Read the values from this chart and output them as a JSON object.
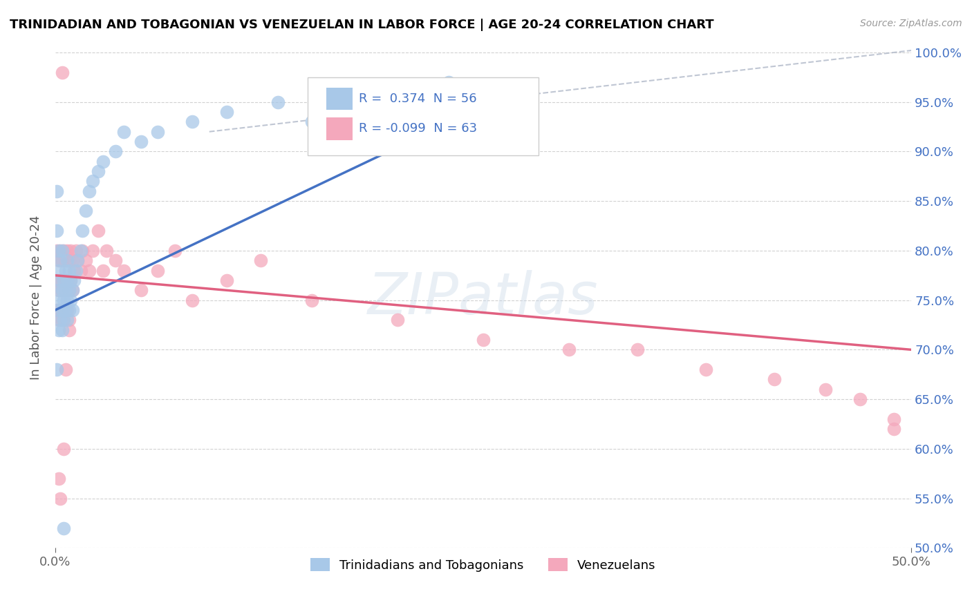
{
  "title": "TRINIDADIAN AND TOBAGONIAN VS VENEZUELAN IN LABOR FORCE | AGE 20-24 CORRELATION CHART",
  "source": "Source: ZipAtlas.com",
  "ylabel": "In Labor Force | Age 20-24",
  "xlim": [
    0.0,
    0.5
  ],
  "ylim": [
    0.5,
    1.005
  ],
  "R_blue": 0.374,
  "N_blue": 56,
  "R_pink": -0.099,
  "N_pink": 63,
  "blue_color": "#a8c8e8",
  "pink_color": "#f4a8bc",
  "blue_line_color": "#4472c4",
  "pink_line_color": "#e06080",
  "gray_dash_color": "#b0b8c8",
  "legend_label_blue": "Trinidadians and Tobagonians",
  "legend_label_pink": "Venezuelans",
  "blue_scatter_x": [
    0.001,
    0.001,
    0.002,
    0.002,
    0.002,
    0.002,
    0.002,
    0.003,
    0.003,
    0.003,
    0.003,
    0.004,
    0.004,
    0.004,
    0.004,
    0.005,
    0.005,
    0.005,
    0.006,
    0.006,
    0.006,
    0.007,
    0.007,
    0.007,
    0.007,
    0.008,
    0.008,
    0.008,
    0.009,
    0.009,
    0.01,
    0.01,
    0.011,
    0.012,
    0.013,
    0.015,
    0.016,
    0.018,
    0.02,
    0.022,
    0.025,
    0.028,
    0.035,
    0.04,
    0.05,
    0.06,
    0.08,
    0.1,
    0.13,
    0.15,
    0.17,
    0.2,
    0.23,
    0.27,
    0.005,
    0.001
  ],
  "blue_scatter_y": [
    0.86,
    0.82,
    0.8,
    0.76,
    0.74,
    0.72,
    0.78,
    0.77,
    0.75,
    0.73,
    0.79,
    0.76,
    0.74,
    0.72,
    0.8,
    0.75,
    0.73,
    0.77,
    0.76,
    0.74,
    0.78,
    0.75,
    0.73,
    0.77,
    0.79,
    0.76,
    0.74,
    0.78,
    0.75,
    0.77,
    0.76,
    0.74,
    0.77,
    0.78,
    0.79,
    0.8,
    0.82,
    0.84,
    0.86,
    0.87,
    0.88,
    0.89,
    0.9,
    0.92,
    0.91,
    0.92,
    0.93,
    0.94,
    0.95,
    0.93,
    0.96,
    0.95,
    0.97,
    0.96,
    0.52,
    0.68
  ],
  "pink_scatter_x": [
    0.001,
    0.001,
    0.001,
    0.002,
    0.002,
    0.002,
    0.003,
    0.003,
    0.003,
    0.004,
    0.004,
    0.004,
    0.005,
    0.005,
    0.005,
    0.006,
    0.006,
    0.007,
    0.007,
    0.007,
    0.008,
    0.008,
    0.008,
    0.009,
    0.009,
    0.01,
    0.01,
    0.011,
    0.012,
    0.013,
    0.015,
    0.016,
    0.018,
    0.02,
    0.022,
    0.025,
    0.028,
    0.03,
    0.035,
    0.04,
    0.05,
    0.06,
    0.07,
    0.08,
    0.1,
    0.12,
    0.15,
    0.2,
    0.25,
    0.3,
    0.34,
    0.38,
    0.42,
    0.45,
    0.47,
    0.49,
    0.49,
    0.005,
    0.002,
    0.003,
    0.004,
    0.006,
    0.008
  ],
  "pink_scatter_y": [
    0.8,
    0.77,
    0.74,
    0.79,
    0.76,
    0.73,
    0.8,
    0.77,
    0.74,
    0.79,
    0.76,
    0.73,
    0.8,
    0.77,
    0.74,
    0.79,
    0.76,
    0.8,
    0.77,
    0.74,
    0.79,
    0.76,
    0.73,
    0.8,
    0.77,
    0.79,
    0.76,
    0.78,
    0.8,
    0.79,
    0.78,
    0.8,
    0.79,
    0.78,
    0.8,
    0.82,
    0.78,
    0.8,
    0.79,
    0.78,
    0.76,
    0.78,
    0.8,
    0.75,
    0.77,
    0.79,
    0.75,
    0.73,
    0.71,
    0.7,
    0.7,
    0.68,
    0.67,
    0.66,
    0.65,
    0.62,
    0.63,
    0.6,
    0.57,
    0.55,
    0.98,
    0.68,
    0.72
  ],
  "blue_line_x0": 0.0,
  "blue_line_y0": 0.74,
  "blue_line_x1": 0.28,
  "blue_line_y1": 0.97,
  "pink_line_x0": 0.0,
  "pink_line_y0": 0.775,
  "pink_line_x1": 0.5,
  "pink_line_y1": 0.7,
  "gray_line_x0": 0.09,
  "gray_line_y0": 0.92,
  "gray_line_x1": 0.5,
  "gray_line_y1": 1.002
}
